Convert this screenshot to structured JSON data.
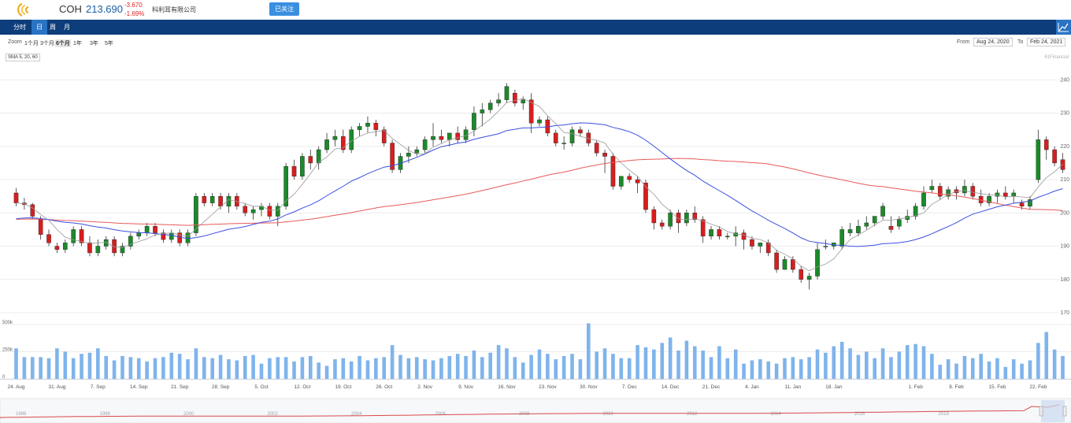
{
  "header": {
    "symbol": "COH",
    "price": "213.690",
    "change": "-3.670",
    "change_pct": "-1.69%",
    "company": "科利耳有限公司",
    "follow_label": "已关注"
  },
  "nav": {
    "tabs": [
      "分时",
      "日",
      "周",
      "月"
    ],
    "active": 1
  },
  "zoom": {
    "label": "Zoom",
    "options": [
      "1个月",
      "3个月",
      "6个月",
      "1年",
      "3年",
      "5年"
    ],
    "active": 2,
    "from_label": "From",
    "from": "Aug 24, 2020",
    "to_label": "To",
    "to": "Feb 24, 2021"
  },
  "indicator": "SMA 5, 20, 60",
  "watermark": "61Financial",
  "colors": {
    "up": "#1b8a2a",
    "down": "#d81e1e",
    "sma5": "#999999",
    "sma20": "#3b4fe0",
    "sma60": "#e85a5a",
    "volume": "#7fb4ec",
    "nav_bg": "#0d3d7a",
    "tab_active": "#2a73c4"
  },
  "chart_data": {
    "type": "candlestick",
    "price_axis": {
      "ticks": [
        170,
        180,
        190,
        200,
        210,
        220,
        230,
        240
      ],
      "range": [
        170,
        241.5
      ]
    },
    "volume_axis": {
      "ticks": [
        "500k",
        "250k",
        "0"
      ],
      "range": [
        0,
        600
      ]
    },
    "x_labels": [
      "24. Aug",
      "31. Aug",
      "7. Sep",
      "14. Sep",
      "21. Sep",
      "28. Sep",
      "5. Oct",
      "12. Oct",
      "19. Oct",
      "26. Oct",
      "2. Nov",
      "9. Nov",
      "16. Nov",
      "23. Nov",
      "30. Nov",
      "7. Dec",
      "14. Dec",
      "21. Dec",
      "4. Jan",
      "11. Jan",
      "18. Jan",
      "1. Feb",
      "8. Feb",
      "15. Feb",
      "22. Feb"
    ],
    "x_label_index": [
      0,
      5,
      10,
      15,
      20,
      25,
      30,
      35,
      40,
      45,
      50,
      55,
      60,
      65,
      70,
      75,
      80,
      85,
      90,
      95,
      100,
      110,
      115,
      120,
      125
    ],
    "navigator_years": [
      "1996",
      "1998",
      "2000",
      "2002",
      "2004",
      "2006",
      "2008",
      "2010",
      "2012",
      "2014",
      "2016",
      "2018"
    ],
    "candles": [
      [
        206,
        207.5,
        202,
        203
      ],
      [
        203,
        204.5,
        201,
        202.5
      ],
      [
        202.5,
        203,
        198,
        199
      ],
      [
        198,
        199,
        192,
        193.5
      ],
      [
        193.5,
        195,
        190,
        191
      ],
      [
        190,
        191,
        188,
        189
      ],
      [
        189,
        192,
        188,
        191
      ],
      [
        191,
        196,
        190,
        195
      ],
      [
        195,
        196,
        190,
        191
      ],
      [
        191,
        193,
        187,
        188
      ],
      [
        188,
        192,
        187,
        190
      ],
      [
        190,
        193,
        189,
        192
      ],
      [
        192,
        193,
        187,
        188
      ],
      [
        188,
        191,
        187,
        190
      ],
      [
        190,
        194,
        189,
        193
      ],
      [
        193,
        195,
        192,
        194
      ],
      [
        194,
        197,
        193,
        196
      ],
      [
        196,
        197,
        193,
        194
      ],
      [
        194,
        195,
        191,
        192
      ],
      [
        192,
        195,
        191,
        194
      ],
      [
        194,
        195,
        190,
        191
      ],
      [
        191,
        195,
        190,
        194
      ],
      [
        194,
        206,
        193,
        205
      ],
      [
        205,
        206,
        202,
        203
      ],
      [
        203,
        206,
        202,
        205
      ],
      [
        205,
        206,
        201,
        202
      ],
      [
        202,
        206,
        200,
        205
      ],
      [
        205,
        206,
        201,
        202
      ],
      [
        202,
        203,
        199,
        200
      ],
      [
        200,
        202,
        198,
        201
      ],
      [
        201,
        203,
        199,
        202
      ],
      [
        202,
        203,
        198,
        199
      ],
      [
        199,
        203,
        196,
        202
      ],
      [
        202,
        215,
        201,
        214
      ],
      [
        214,
        216,
        210,
        211
      ],
      [
        211,
        218,
        210,
        217
      ],
      [
        217,
        219,
        213,
        215
      ],
      [
        215,
        220,
        213,
        219
      ],
      [
        219,
        224,
        218,
        222
      ],
      [
        222,
        225,
        220,
        223
      ],
      [
        223,
        225,
        218,
        219
      ],
      [
        219,
        226,
        218,
        225
      ],
      [
        225,
        227,
        223,
        226
      ],
      [
        226,
        229,
        224,
        227
      ],
      [
        227,
        228,
        223,
        225
      ],
      [
        225,
        226,
        220,
        221
      ],
      [
        221,
        222,
        212,
        213
      ],
      [
        213,
        218,
        212,
        217
      ],
      [
        217,
        220,
        215,
        218
      ],
      [
        218,
        220,
        217,
        219
      ],
      [
        219,
        223,
        218,
        222
      ],
      [
        222,
        227,
        220,
        223
      ],
      [
        223,
        225,
        221,
        222
      ],
      [
        222,
        224,
        220,
        224
      ],
      [
        224,
        226,
        221,
        222
      ],
      [
        222,
        226,
        221,
        225
      ],
      [
        225,
        232,
        223,
        230
      ],
      [
        230,
        233,
        226,
        231
      ],
      [
        231,
        234,
        230,
        233
      ],
      [
        233,
        236,
        232,
        234
      ],
      [
        234,
        239,
        233,
        238
      ],
      [
        236,
        237,
        232,
        233
      ],
      [
        233,
        235,
        231,
        234
      ],
      [
        234,
        236,
        224,
        227
      ],
      [
        227,
        229,
        226,
        228
      ],
      [
        228,
        229,
        223,
        224
      ],
      [
        224,
        225,
        220,
        221
      ],
      [
        221,
        223,
        219,
        221
      ],
      [
        221,
        226,
        220,
        225
      ],
      [
        225,
        226,
        223,
        224
      ],
      [
        224,
        225,
        220,
        221
      ],
      [
        221,
        222,
        217,
        218
      ],
      [
        218,
        219,
        212,
        217
      ],
      [
        217,
        218,
        207,
        208
      ],
      [
        208,
        211,
        207,
        211
      ],
      [
        211,
        212,
        209,
        210
      ],
      [
        210,
        211,
        206,
        209
      ],
      [
        209,
        210,
        200,
        201
      ],
      [
        201,
        202,
        195,
        197
      ],
      [
        197,
        198,
        195,
        196
      ],
      [
        196,
        201,
        195,
        200
      ],
      [
        200,
        201,
        194,
        197
      ],
      [
        197,
        201,
        196,
        200
      ],
      [
        200,
        202,
        197,
        198
      ],
      [
        198,
        199,
        191,
        193
      ],
      [
        193,
        196,
        192,
        195
      ],
      [
        195,
        196,
        192,
        193
      ],
      [
        193,
        194,
        192,
        193
      ],
      [
        193,
        196,
        190,
        194
      ],
      [
        194,
        195,
        189,
        192
      ],
      [
        192,
        193,
        189,
        190
      ],
      [
        190,
        191,
        188,
        191
      ],
      [
        191,
        192,
        187,
        188
      ],
      [
        188,
        189,
        182,
        183
      ],
      [
        183,
        187,
        183,
        186
      ],
      [
        186,
        187,
        182,
        183
      ],
      [
        183,
        184,
        179,
        180
      ],
      [
        180,
        182,
        177,
        181
      ],
      [
        181,
        191,
        180,
        189
      ],
      [
        190,
        192,
        189,
        190
      ],
      [
        190,
        191,
        189,
        191
      ],
      [
        190,
        196,
        189,
        195
      ],
      [
        194,
        197,
        193,
        195
      ],
      [
        194,
        198,
        193,
        196
      ],
      [
        196,
        199,
        195,
        197
      ],
      [
        197,
        199,
        196,
        199
      ],
      [
        199,
        203,
        198,
        202
      ],
      [
        196,
        199,
        194,
        195
      ],
      [
        196,
        199,
        195,
        198
      ],
      [
        198,
        201,
        197,
        199
      ],
      [
        199,
        203,
        198,
        202
      ],
      [
        202,
        208,
        201,
        206
      ],
      [
        207,
        210,
        206,
        208
      ],
      [
        208,
        209,
        204,
        205
      ],
      [
        205,
        208,
        204,
        207
      ],
      [
        207,
        208,
        204,
        206
      ],
      [
        206,
        210,
        205,
        208
      ],
      [
        208,
        209,
        204,
        205
      ],
      [
        205,
        207,
        202,
        203
      ],
      [
        203,
        206,
        202,
        205
      ],
      [
        205,
        207,
        203,
        206
      ],
      [
        206,
        208,
        204,
        205
      ],
      [
        205,
        207,
        203,
        206
      ],
      [
        203,
        204,
        201,
        202
      ],
      [
        202,
        205,
        201,
        204
      ],
      [
        210,
        225,
        209,
        222
      ],
      [
        222,
        223,
        216,
        219
      ],
      [
        219,
        220,
        214,
        215
      ],
      [
        216,
        218,
        212,
        213
      ]
    ],
    "volume": [
      280,
      200,
      200,
      200,
      190,
      280,
      250,
      190,
      230,
      240,
      280,
      210,
      170,
      210,
      200,
      190,
      160,
      190,
      200,
      240,
      230,
      180,
      280,
      200,
      190,
      220,
      180,
      170,
      210,
      220,
      140,
      190,
      200,
      200,
      160,
      200,
      210,
      150,
      120,
      180,
      190,
      160,
      210,
      170,
      190,
      200,
      310,
      220,
      190,
      200,
      180,
      170,
      190,
      210,
      230,
      210,
      260,
      200,
      240,
      310,
      280,
      200,
      150,
      220,
      270,
      230,
      180,
      210,
      230,
      180,
      510,
      250,
      280,
      230,
      190,
      190,
      310,
      290,
      270,
      330,
      380,
      260,
      350,
      300,
      260,
      200,
      300,
      190,
      270,
      140,
      170,
      180,
      160,
      140,
      190,
      200,
      180,
      200,
      270,
      240,
      300,
      340,
      280,
      220,
      250,
      190,
      280,
      200,
      250,
      310,
      320,
      300,
      230,
      130,
      180,
      140,
      210,
      190,
      230,
      160,
      190,
      110,
      180,
      140,
      170,
      330,
      430,
      270,
      210
    ]
  }
}
